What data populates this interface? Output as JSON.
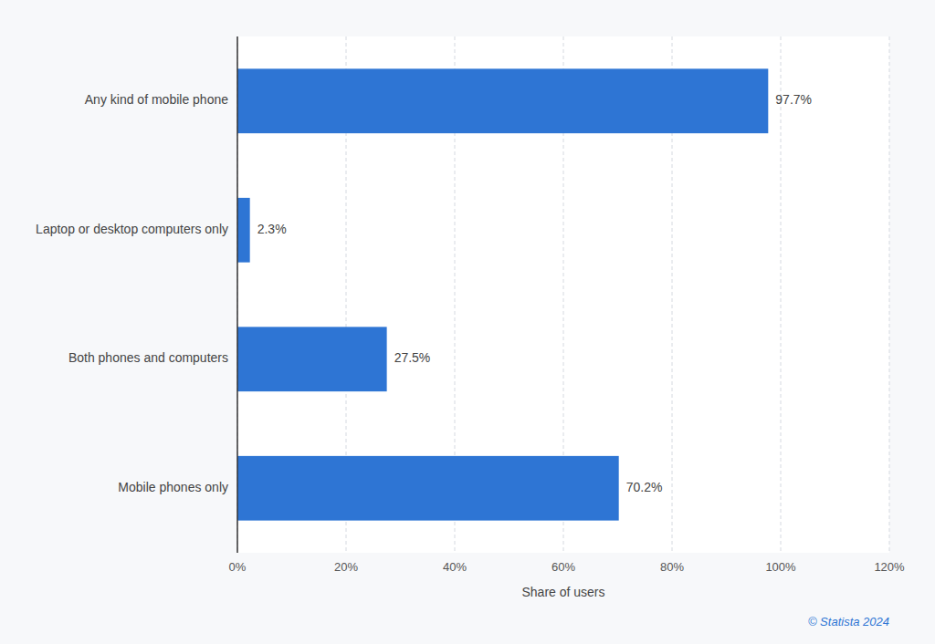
{
  "chart_data": {
    "type": "bar",
    "orientation": "horizontal",
    "categories": [
      "Any kind of mobile phone",
      "Laptop or desktop computers only",
      "Both phones and computers",
      "Mobile phones only"
    ],
    "values": [
      97.7,
      2.3,
      27.5,
      70.2
    ],
    "value_labels": [
      "97.7%",
      "2.3%",
      "27.5%",
      "70.2%"
    ],
    "data_labels": true,
    "color": "#2e75d4",
    "x_label": "Share of users",
    "xlim": [
      0,
      120
    ],
    "xticks": [
      {
        "value": 0,
        "label": "0%"
      },
      {
        "value": 20,
        "label": "20%"
      },
      {
        "value": 40,
        "label": "40%"
      },
      {
        "value": 60,
        "label": "60%"
      },
      {
        "value": 80,
        "label": "80%"
      },
      {
        "value": 100,
        "label": "100%"
      },
      {
        "value": 120,
        "label": "120%"
      }
    ],
    "grid": true,
    "annotations": [
      "© Statista 2024"
    ]
  }
}
